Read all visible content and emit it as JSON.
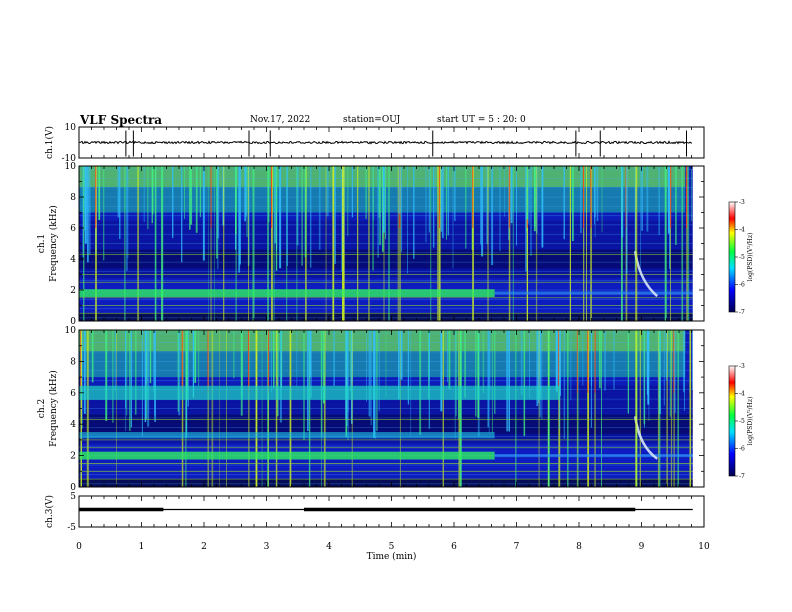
{
  "header": {
    "title": "VLF Spectra",
    "date": "Nov.17, 2022",
    "station": "station=OUJ",
    "start": "start UT =  5 : 20: 0"
  },
  "chart_data": [
    {
      "type": "line",
      "id": "ch1-waveform",
      "ylabel": "ch.1(V)",
      "ylim": [
        -10,
        10
      ],
      "yticks": [
        "10",
        "-10"
      ],
      "baseline": 0,
      "spikes_at_min": [
        0.75,
        0.87,
        2.72,
        3.06,
        5.66,
        7.95,
        8.34,
        9.72
      ]
    },
    {
      "type": "heatmap",
      "id": "ch1-spectrogram",
      "ylabel": "ch.1\nFrequency (kHz)",
      "ylabel_lines": [
        "ch.1",
        "Frequency (kHz)"
      ],
      "ylim": [
        0,
        10
      ],
      "yticks": [
        "0",
        "2",
        "4",
        "6",
        "8",
        "10"
      ],
      "colorbar": {
        "label": "log(PSD)(V²/Hz)",
        "range": [
          -7,
          -3
        ],
        "ticks": [
          "-3",
          "-4",
          "-5",
          "-6",
          "-7"
        ]
      },
      "features": {
        "band_khz": 1.8,
        "band_end_min": 6.65,
        "chorus_min": 8.9,
        "strong_lines_khz": [
          0.5,
          1.0,
          1.5,
          2.5,
          3.0,
          4.3
        ]
      }
    },
    {
      "type": "heatmap",
      "id": "ch2-spectrogram",
      "ylabel": "ch.2\nFrequency (kHz)",
      "ylabel_lines": [
        "ch.2",
        "Frequency (kHz)"
      ],
      "ylim": [
        0,
        10
      ],
      "yticks": [
        "0",
        "2",
        "4",
        "6",
        "8",
        "10"
      ],
      "colorbar": {
        "label": "log(PSD)(V²/Hz)",
        "range": [
          -7,
          -3
        ],
        "ticks": [
          "-3",
          "-4",
          "-5",
          "-6",
          "-7"
        ]
      },
      "features": {
        "band_khz": 2.0,
        "band_end_min": 6.65,
        "mid_band_khz": 6.0,
        "mid_band_end_min": 7.7,
        "band3_khz": 3.3,
        "chorus_min": 8.9,
        "strong_lines_khz": [
          0.5,
          1.0,
          1.5,
          2.5,
          3.0,
          4.3
        ]
      }
    },
    {
      "type": "line",
      "id": "ch3-trace",
      "ylabel": "ch.3(V)",
      "ylim": [
        -5,
        5
      ],
      "yticks": [
        "5",
        "-5"
      ],
      "level": 0,
      "thick_segments_min": [
        [
          0,
          1.35
        ],
        [
          3.6,
          8.9
        ]
      ]
    }
  ],
  "xaxis": {
    "label": "Time (min)",
    "range": [
      0,
      10
    ],
    "ticks": [
      "0",
      "1",
      "2",
      "3",
      "4",
      "5",
      "6",
      "7",
      "8",
      "9",
      "10"
    ]
  }
}
